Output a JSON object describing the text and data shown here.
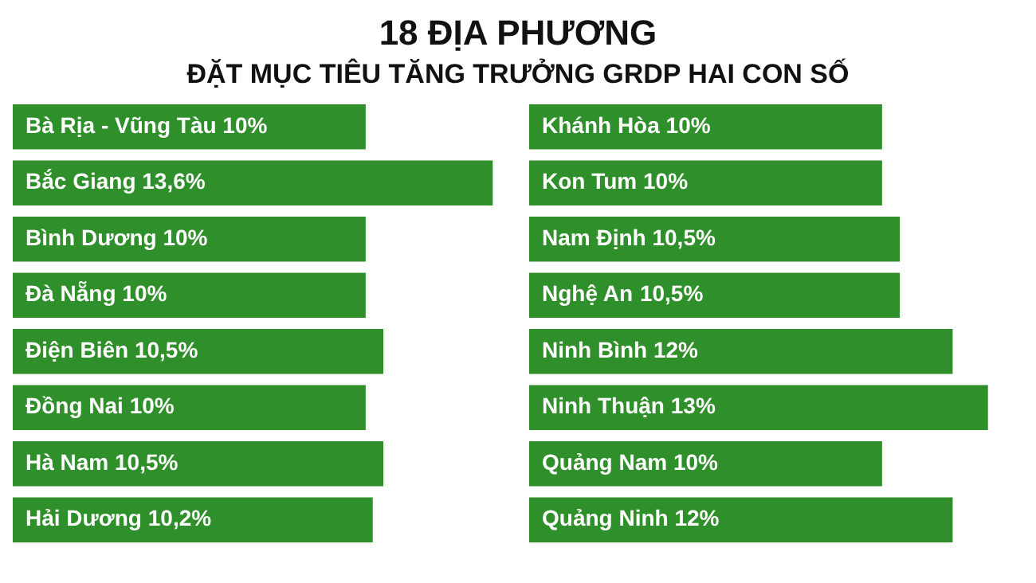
{
  "chart_data": [
    {
      "type": "bar",
      "orientation": "horizontal",
      "title": "18 ĐỊA PHƯƠNG",
      "subtitle": "ĐẶT MỤC TIÊU TĂNG TRƯỞNG GRDP HAI CON SỐ",
      "categories": [
        "Bà Rịa - Vũng Tàu",
        "Bắc Giang",
        "Bình Dương",
        "Đà Nẵng",
        "Điện Biên",
        "Đồng Nai",
        "Hà Nam",
        "Hải Dương"
      ],
      "values": [
        10,
        13.6,
        10,
        10,
        10.5,
        10,
        10.5,
        10.2
      ],
      "value_labels": [
        "10%",
        "13,6%",
        "10%",
        "10%",
        "10,5%",
        "10%",
        "10,5%",
        "10,2%"
      ],
      "color": "#2f8f2a",
      "tick_labels": false
    },
    {
      "type": "bar",
      "orientation": "horizontal",
      "categories": [
        "Khánh Hòa",
        "Kon Tum",
        "Nam Định",
        "Nghệ An",
        "Ninh Bình",
        "Ninh Thuận",
        "Quảng Nam",
        "Quảng Ninh"
      ],
      "values": [
        10,
        10,
        10.5,
        10.5,
        12,
        13,
        10,
        12
      ],
      "value_labels": [
        "10%",
        "10%",
        "10,5%",
        "10,5%",
        "12%",
        "13%",
        "10%",
        "12%"
      ],
      "color": "#2f8f2a",
      "tick_labels": false
    }
  ]
}
